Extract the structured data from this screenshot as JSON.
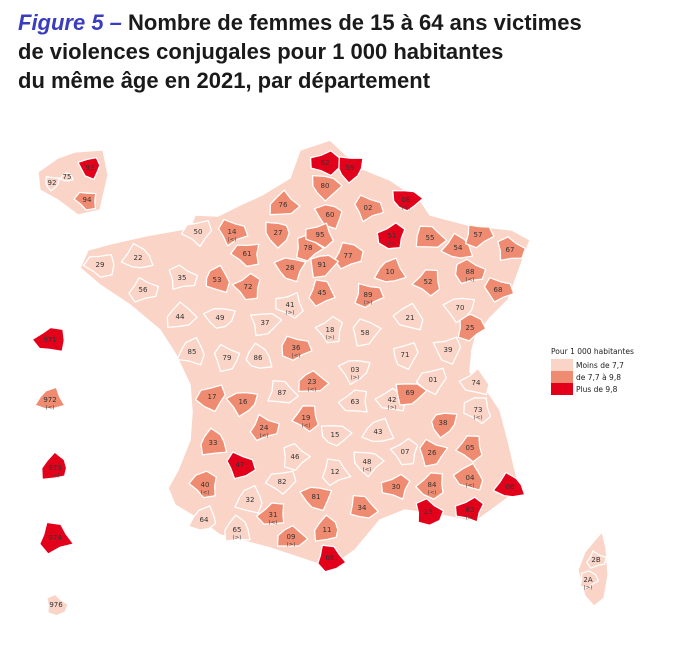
{
  "title": {
    "figure_label": "Figure 5 –",
    "line1": "Nombre de femmes de 15 à 64 ans victimes",
    "line2": "de violences conjugales pour 1 000 habitantes",
    "line3": "du même âge en 2021, par département"
  },
  "legend": {
    "title": "Pour 1 000 habitantes",
    "items": [
      {
        "label": "Moins de 7,7",
        "color": "#fad4c6"
      },
      {
        "label": "de 7,7 à 9,8",
        "color": "#ef8b70"
      },
      {
        "label": "Plus de 9,8",
        "color": "#e3001b"
      }
    ]
  },
  "chart_data": {
    "type": "choropleth",
    "legend_placement": "right",
    "classes": [
      "Moins de 7,7",
      "de 7,7 à 9,8",
      "Plus de 9,8"
    ],
    "departments": [
      {
        "code": "59",
        "class": 2
      },
      {
        "code": "62",
        "class": 2
      },
      {
        "code": "80",
        "class": 1
      },
      {
        "code": "02",
        "class": 1
      },
      {
        "code": "08",
        "class": 2,
        "tag": "(<)"
      },
      {
        "code": "60",
        "class": 1
      },
      {
        "code": "76",
        "class": 1
      },
      {
        "code": "27",
        "class": 1
      },
      {
        "code": "14",
        "class": 1,
        "tag": "(<)"
      },
      {
        "code": "50",
        "class": 0
      },
      {
        "code": "61",
        "class": 1
      },
      {
        "code": "95",
        "class": 1
      },
      {
        "code": "78",
        "class": 1
      },
      {
        "code": "91",
        "class": 1
      },
      {
        "code": "77",
        "class": 1
      },
      {
        "code": "51",
        "class": 2,
        "tag": "(<)"
      },
      {
        "code": "55",
        "class": 1
      },
      {
        "code": "57",
        "class": 1
      },
      {
        "code": "54",
        "class": 1
      },
      {
        "code": "67",
        "class": 1
      },
      {
        "code": "88",
        "class": 1,
        "tag": "(<)"
      },
      {
        "code": "68",
        "class": 1
      },
      {
        "code": "10",
        "class": 1
      },
      {
        "code": "52",
        "class": 1
      },
      {
        "code": "28",
        "class": 1
      },
      {
        "code": "45",
        "class": 1
      },
      {
        "code": "89",
        "class": 1,
        "tag": "(>)"
      },
      {
        "code": "29",
        "class": 0
      },
      {
        "code": "22",
        "class": 0
      },
      {
        "code": "56",
        "class": 0
      },
      {
        "code": "35",
        "class": 0
      },
      {
        "code": "53",
        "class": 1
      },
      {
        "code": "72",
        "class": 1
      },
      {
        "code": "44",
        "class": 0
      },
      {
        "code": "49",
        "class": 0
      },
      {
        "code": "37",
        "class": 0
      },
      {
        "code": "41",
        "class": 0,
        "tag": "(>)"
      },
      {
        "code": "18",
        "class": 0,
        "tag": "(>)"
      },
      {
        "code": "58",
        "class": 0
      },
      {
        "code": "21",
        "class": 0
      },
      {
        "code": "70",
        "class": 0
      },
      {
        "code": "25",
        "class": 1
      },
      {
        "code": "39",
        "class": 0
      },
      {
        "code": "71",
        "class": 0
      },
      {
        "code": "85",
        "class": 0
      },
      {
        "code": "79",
        "class": 0
      },
      {
        "code": "86",
        "class": 0
      },
      {
        "code": "36",
        "class": 1,
        "tag": "(<)"
      },
      {
        "code": "03",
        "class": 0,
        "tag": "(>)"
      },
      {
        "code": "01",
        "class": 0
      },
      {
        "code": "74",
        "class": 0
      },
      {
        "code": "17",
        "class": 1
      },
      {
        "code": "16",
        "class": 1
      },
      {
        "code": "87",
        "class": 0
      },
      {
        "code": "23",
        "class": 1,
        "tag": "(<)"
      },
      {
        "code": "63",
        "class": 0
      },
      {
        "code": "42",
        "class": 0,
        "tag": "(>)"
      },
      {
        "code": "69",
        "class": 1
      },
      {
        "code": "73",
        "class": 0,
        "tag": "(<)"
      },
      {
        "code": "38",
        "class": 1
      },
      {
        "code": "19",
        "class": 1,
        "tag": "(<)"
      },
      {
        "code": "24",
        "class": 1,
        "tag": "(<)"
      },
      {
        "code": "15",
        "class": 0
      },
      {
        "code": "43",
        "class": 0
      },
      {
        "code": "33",
        "class": 1
      },
      {
        "code": "47",
        "class": 2
      },
      {
        "code": "46",
        "class": 0
      },
      {
        "code": "12",
        "class": 0
      },
      {
        "code": "48",
        "class": 0,
        "tag": "(<)"
      },
      {
        "code": "07",
        "class": 0
      },
      {
        "code": "26",
        "class": 1
      },
      {
        "code": "05",
        "class": 1
      },
      {
        "code": "04",
        "class": 1,
        "tag": "(<)"
      },
      {
        "code": "06",
        "class": 2
      },
      {
        "code": "40",
        "class": 1,
        "tag": "(<)"
      },
      {
        "code": "82",
        "class": 0
      },
      {
        "code": "81",
        "class": 1
      },
      {
        "code": "30",
        "class": 1
      },
      {
        "code": "84",
        "class": 1,
        "tag": "(<)"
      },
      {
        "code": "13",
        "class": 2
      },
      {
        "code": "83",
        "class": 2,
        "tag": "(>)"
      },
      {
        "code": "64",
        "class": 0
      },
      {
        "code": "32",
        "class": 0
      },
      {
        "code": "65",
        "class": 0,
        "tag": "(>)"
      },
      {
        "code": "31",
        "class": 1,
        "tag": "(<)"
      },
      {
        "code": "09",
        "class": 1,
        "tag": "(>)"
      },
      {
        "code": "11",
        "class": 1
      },
      {
        "code": "34",
        "class": 1
      },
      {
        "code": "66",
        "class": 2
      },
      {
        "code": "2B",
        "class": 0
      },
      {
        "code": "2A",
        "class": 0,
        "tag": "(>)"
      },
      {
        "code": "92",
        "class": 0
      },
      {
        "code": "75",
        "class": 0
      },
      {
        "code": "93",
        "class": 2
      },
      {
        "code": "94",
        "class": 1
      },
      {
        "code": "972",
        "class": 1,
        "tag": "(<)"
      },
      {
        "code": "973",
        "class": 2,
        "tag": "(>)"
      },
      {
        "code": "974",
        "class": 2
      },
      {
        "code": "976",
        "class": 0
      },
      {
        "code": "971",
        "class": 2
      }
    ]
  }
}
